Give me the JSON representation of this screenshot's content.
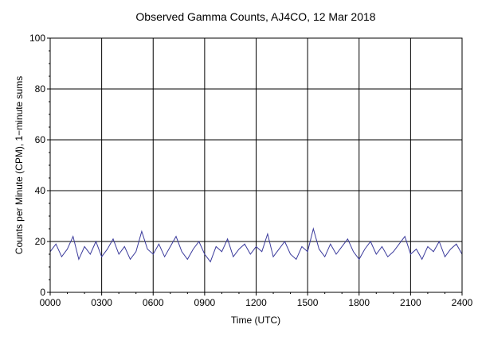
{
  "chart_data": {
    "type": "line",
    "title": "Observed Gamma Counts, AJ4CO, 12 Mar 2018",
    "xlabel": "Time (UTC)",
    "ylabel": "Counts per Minute (CPM), 1−minute sums",
    "xlim": [
      0,
      1440
    ],
    "ylim": [
      0,
      100
    ],
    "x_ticks": [
      {
        "value": 0,
        "label": "0000"
      },
      {
        "value": 180,
        "label": "0300"
      },
      {
        "value": 360,
        "label": "0600"
      },
      {
        "value": 540,
        "label": "0900"
      },
      {
        "value": 720,
        "label": "1200"
      },
      {
        "value": 900,
        "label": "1500"
      },
      {
        "value": 1080,
        "label": "1800"
      },
      {
        "value": 1260,
        "label": "2100"
      },
      {
        "value": 1440,
        "label": "2400"
      }
    ],
    "y_ticks": [
      {
        "value": 0,
        "label": "0"
      },
      {
        "value": 20,
        "label": "20"
      },
      {
        "value": 40,
        "label": "40"
      },
      {
        "value": 60,
        "label": "60"
      },
      {
        "value": 80,
        "label": "80"
      },
      {
        "value": 100,
        "label": "100"
      }
    ],
    "grid": true,
    "series_color": "#3b3b9c",
    "series": [
      {
        "x": [
          0,
          20,
          40,
          60,
          80,
          100,
          120,
          140,
          160,
          180,
          200,
          220,
          240,
          260,
          280,
          300,
          320,
          340,
          360,
          380,
          400,
          420,
          440,
          460,
          480,
          500,
          520,
          540,
          560,
          580,
          600,
          620,
          640,
          660,
          680,
          700,
          720,
          740,
          760,
          780,
          800,
          820,
          840,
          860,
          880,
          900,
          920,
          940,
          960,
          980,
          1000,
          1020,
          1040,
          1060,
          1080,
          1100,
          1120,
          1140,
          1160,
          1180,
          1200,
          1220,
          1240,
          1260,
          1280,
          1300,
          1320,
          1340,
          1360,
          1380,
          1400,
          1420,
          1440
        ],
        "values": [
          16,
          19,
          14,
          17,
          22,
          13,
          18,
          15,
          20,
          14,
          17,
          21,
          15,
          18,
          13,
          16,
          24,
          17,
          15,
          19,
          14,
          18,
          22,
          16,
          13,
          17,
          20,
          15,
          12,
          18,
          16,
          21,
          14,
          17,
          19,
          15,
          18,
          16,
          23,
          14,
          17,
          20,
          15,
          13,
          18,
          16,
          25,
          17,
          14,
          19,
          15,
          18,
          21,
          16,
          13,
          17,
          20,
          15,
          18,
          14,
          16,
          19,
          22,
          15,
          17,
          13,
          18,
          16,
          20,
          14,
          17,
          19,
          15
        ]
      }
    ]
  }
}
